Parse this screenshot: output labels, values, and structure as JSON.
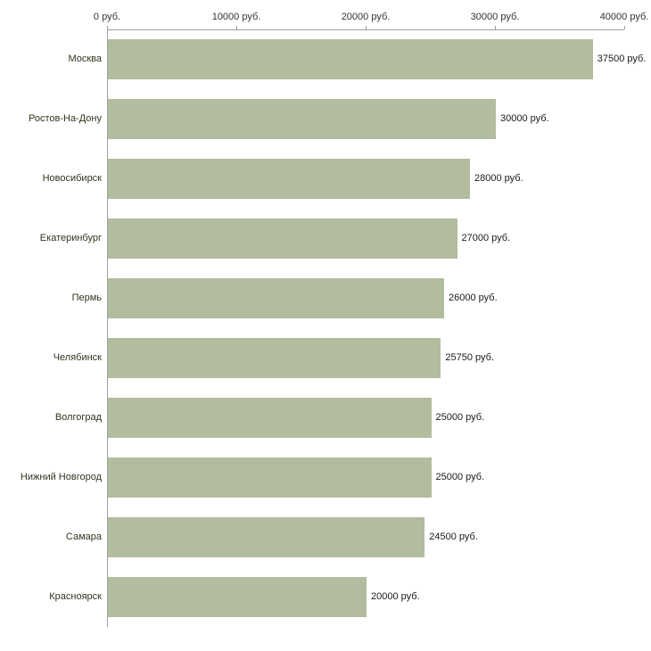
{
  "chart_data": {
    "type": "bar",
    "orientation": "horizontal",
    "title": "",
    "xlabel": "",
    "ylabel": "",
    "xlim": [
      0,
      40000
    ],
    "grid": false,
    "legend": false,
    "bar_color": "#b2bc9e",
    "axis_color": "#a0a0a0",
    "categories": [
      "Москва",
      "Ростов-На-Дону",
      "Новосибирск",
      "Екатеринбург",
      "Пермь",
      "Челябинск",
      "Волгоград",
      "Нижний Новгород",
      "Самара",
      "Красноярск"
    ],
    "values": [
      37500,
      30000,
      28000,
      27000,
      26000,
      25750,
      25000,
      25000,
      24500,
      20000
    ],
    "value_labels": [
      "37500 руб.",
      "30000 руб.",
      "28000 руб.",
      "27000 руб.",
      "26000 руб.",
      "25750 руб.",
      "25000 руб.",
      "25000 руб.",
      "24500 руб.",
      "20000 руб."
    ],
    "x_ticks": [
      0,
      10000,
      20000,
      30000,
      40000
    ],
    "x_tick_labels": [
      "0 руб.",
      "10000 руб.",
      "20000 руб.",
      "30000 руб.",
      "40000 руб."
    ]
  }
}
